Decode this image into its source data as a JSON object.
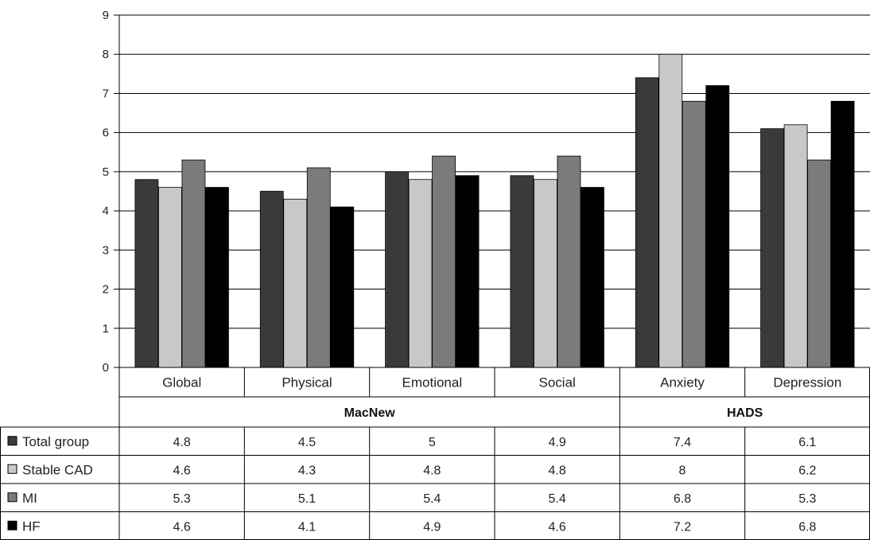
{
  "chart_data": {
    "type": "bar",
    "title": "",
    "xlabel": "",
    "ylabel": "",
    "ylim": [
      0,
      9
    ],
    "yticks": [
      0,
      1,
      2,
      3,
      4,
      5,
      6,
      7,
      8,
      9
    ],
    "grid": true,
    "legend": "left-of-table",
    "categories": [
      "Global",
      "Physical",
      "Emotional",
      "Social",
      "Anxiety",
      "Depression"
    ],
    "category_groups": [
      {
        "label": "MacNew",
        "span": 4
      },
      {
        "label": "HADS",
        "span": 2
      }
    ],
    "series": [
      {
        "name": "Total group",
        "color": "#3a3a3a",
        "values": [
          4.8,
          4.5,
          5,
          4.9,
          7.4,
          6.1
        ],
        "labels": [
          "4.8",
          "4.5",
          "5",
          "4.9",
          "7.4",
          "6.1"
        ]
      },
      {
        "name": "Stable CAD",
        "color": "#c8c8c8",
        "values": [
          4.6,
          4.3,
          4.8,
          4.8,
          8,
          6.2
        ],
        "labels": [
          "4.6",
          "4.3",
          "4.8",
          "4.8",
          "8",
          "6.2"
        ]
      },
      {
        "name": "MI",
        "color": "#7b7b7b",
        "values": [
          5.3,
          5.1,
          5.4,
          5.4,
          6.8,
          5.3
        ],
        "labels": [
          "5.3",
          "5.1",
          "5.4",
          "5.4",
          "6.8",
          "5.3"
        ]
      },
      {
        "name": "HF",
        "color": "#000000",
        "values": [
          4.6,
          4.1,
          4.9,
          4.6,
          7.2,
          6.8
        ],
        "labels": [
          "4.6",
          "4.1",
          "4.9",
          "4.6",
          "7.2",
          "6.8"
        ]
      }
    ]
  }
}
